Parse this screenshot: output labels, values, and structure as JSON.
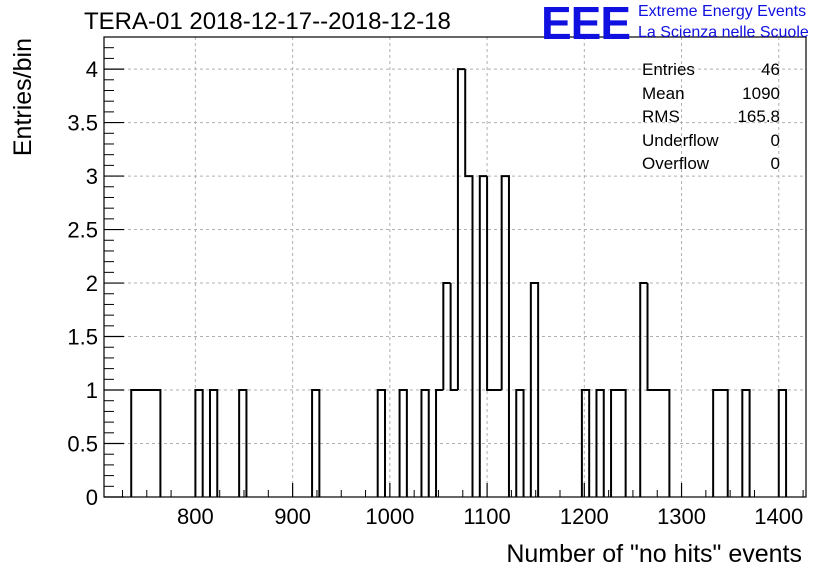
{
  "header": {
    "title": "TERA-01 2018-12-17--2018-12-18",
    "logo_mark": "EEE",
    "logo_line1": "Extreme Energy Events",
    "logo_line2": "La Scienza nelle Scuole",
    "logo_color": "#1010e0"
  },
  "stats": {
    "rows": [
      {
        "label": "Entries",
        "value": "46"
      },
      {
        "label": "Mean",
        "value": "1090"
      },
      {
        "label": "RMS",
        "value": "165.8"
      },
      {
        "label": "Underflow",
        "value": "0"
      },
      {
        "label": "Overflow",
        "value": "0"
      }
    ]
  },
  "chart_data": {
    "type": "histogram",
    "title": "TERA-01 2018-12-17--2018-12-18",
    "xlabel": "Number of \"no hits\" events",
    "ylabel": "Entries/bin",
    "xlim": [
      706,
      1428
    ],
    "ylim": [
      0,
      4.3
    ],
    "grid": true,
    "xticks": [
      800,
      900,
      1000,
      1100,
      1200,
      1300,
      1400
    ],
    "yticks": [
      0,
      0.5,
      1,
      1.5,
      2,
      2.5,
      3,
      3.5,
      4
    ],
    "ytick_labels": [
      "0",
      "0.5",
      "1",
      "1.5",
      "2",
      "2.5",
      "3",
      "3.5",
      "4"
    ],
    "bin_width": 7.5,
    "bins": [
      {
        "x0": 734,
        "x1": 764,
        "count": 1
      },
      {
        "x0": 800,
        "x1": 807.5,
        "count": 1
      },
      {
        "x0": 815,
        "x1": 822.5,
        "count": 1
      },
      {
        "x0": 845,
        "x1": 852.5,
        "count": 1
      },
      {
        "x0": 920,
        "x1": 927.5,
        "count": 1
      },
      {
        "x0": 987.5,
        "x1": 995,
        "count": 1
      },
      {
        "x0": 1010,
        "x1": 1017.5,
        "count": 1
      },
      {
        "x0": 1032.5,
        "x1": 1040,
        "count": 1
      },
      {
        "x0": 1047.5,
        "x1": 1055,
        "count": 1
      },
      {
        "x0": 1055,
        "x1": 1062.5,
        "count": 2
      },
      {
        "x0": 1062.5,
        "x1": 1070,
        "count": 1
      },
      {
        "x0": 1070,
        "x1": 1077.5,
        "count": 4
      },
      {
        "x0": 1077.5,
        "x1": 1085,
        "count": 3
      },
      {
        "x0": 1092.5,
        "x1": 1100,
        "count": 3
      },
      {
        "x0": 1100,
        "x1": 1115,
        "count": 1
      },
      {
        "x0": 1115,
        "x1": 1122.5,
        "count": 3
      },
      {
        "x0": 1130,
        "x1": 1137.5,
        "count": 1
      },
      {
        "x0": 1145,
        "x1": 1152.5,
        "count": 2
      },
      {
        "x0": 1197.5,
        "x1": 1205,
        "count": 1
      },
      {
        "x0": 1212.5,
        "x1": 1220,
        "count": 1
      },
      {
        "x0": 1227.5,
        "x1": 1242.5,
        "count": 1
      },
      {
        "x0": 1257.5,
        "x1": 1265,
        "count": 2
      },
      {
        "x0": 1265,
        "x1": 1287.5,
        "count": 1
      },
      {
        "x0": 1332.5,
        "x1": 1347.5,
        "count": 1
      },
      {
        "x0": 1362.5,
        "x1": 1370,
        "count": 1
      },
      {
        "x0": 1400,
        "x1": 1407.5,
        "count": 1
      }
    ]
  }
}
